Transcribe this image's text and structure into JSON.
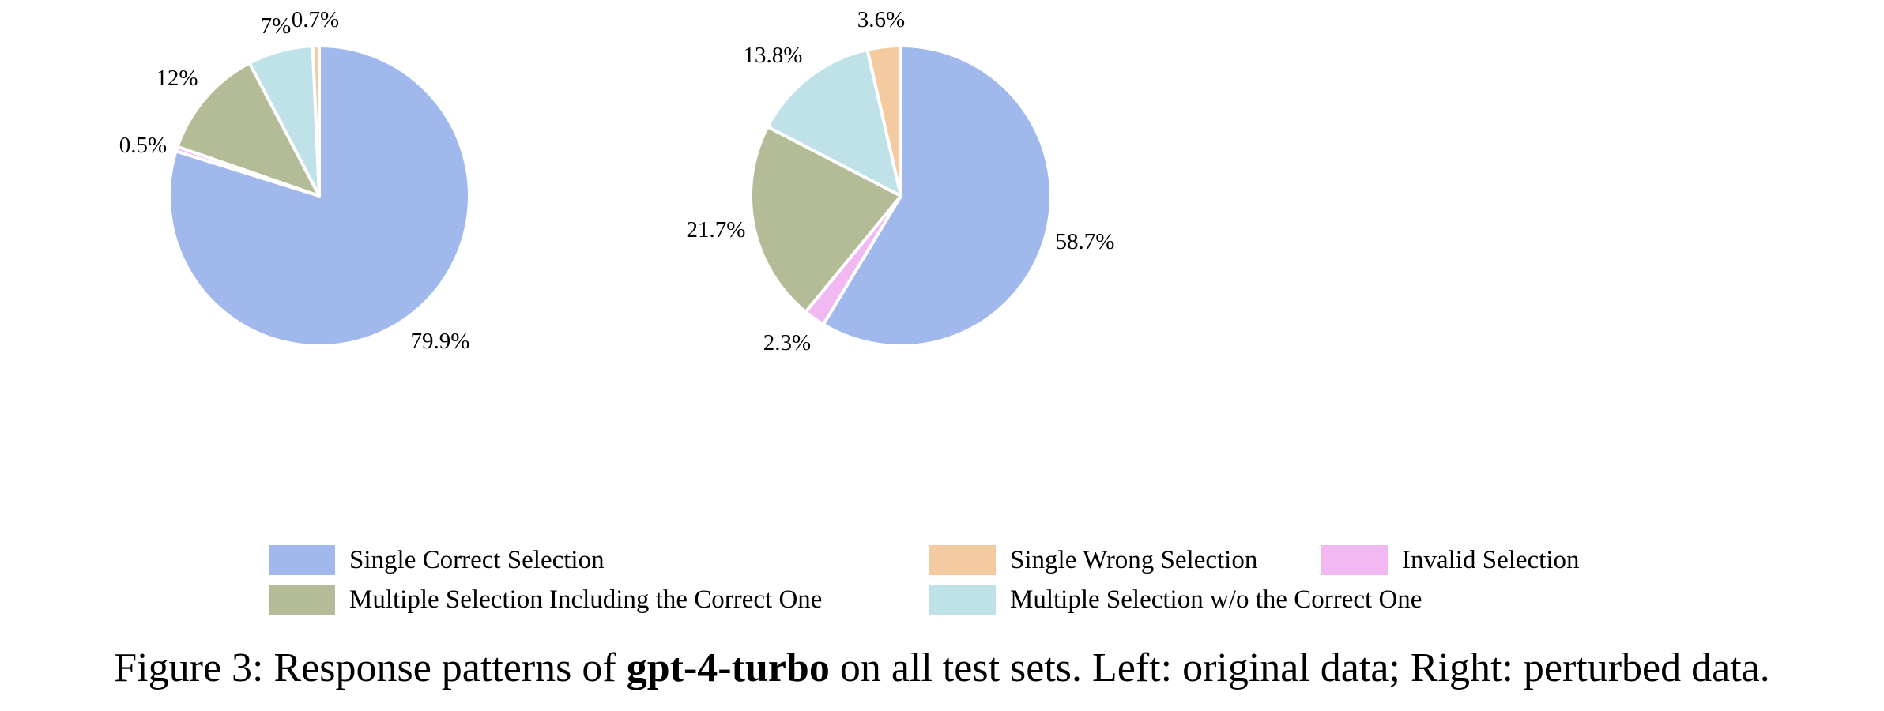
{
  "chart_data": [
    {
      "type": "pie",
      "slices": [
        {
          "name": "Single Correct Selection",
          "value": 79.9,
          "label": "79.9%"
        },
        {
          "name": "Invalid Selection",
          "value": 0.5,
          "label": "0.5%"
        },
        {
          "name": "Multiple Selection Including the Correct One",
          "value": 12.0,
          "label": "12%"
        },
        {
          "name": "Multiple Selection w/o the Correct One",
          "value": 7.0,
          "label": "7%"
        },
        {
          "name": "Single Wrong Selection",
          "value": 0.7,
          "label": "0.7%"
        }
      ]
    },
    {
      "type": "pie",
      "slices": [
        {
          "name": "Single Correct Selection",
          "value": 58.7,
          "label": "58.7%"
        },
        {
          "name": "Invalid Selection",
          "value": 2.3,
          "label": "2.3%"
        },
        {
          "name": "Multiple Selection Including the Correct One",
          "value": 21.7,
          "label": "21.7%"
        },
        {
          "name": "Multiple Selection w/o the Correct One",
          "value": 13.8,
          "label": "13.8%"
        },
        {
          "name": "Single Wrong Selection",
          "value": 3.6,
          "label": "3.6%"
        }
      ]
    }
  ],
  "legend": {
    "placement": "bottom-center",
    "items": [
      {
        "label": "Single Correct Selection",
        "color": "#a0b8ec"
      },
      {
        "label": "Single Wrong Selection",
        "color": "#f4caa0"
      },
      {
        "label": "Invalid Selection",
        "color": "#f1b8f2"
      },
      {
        "label": "Multiple Selection Including the Correct One",
        "color": "#b3bb97"
      },
      {
        "label": "Multiple Selection w/o the Correct One",
        "color": "#bfe1e8"
      }
    ]
  },
  "caption": {
    "prefix": "Figure 3: Response patterns of ",
    "model": "gpt-4-turbo",
    "suffix": " on all test sets. Left: original data; Right: perturbed data."
  }
}
